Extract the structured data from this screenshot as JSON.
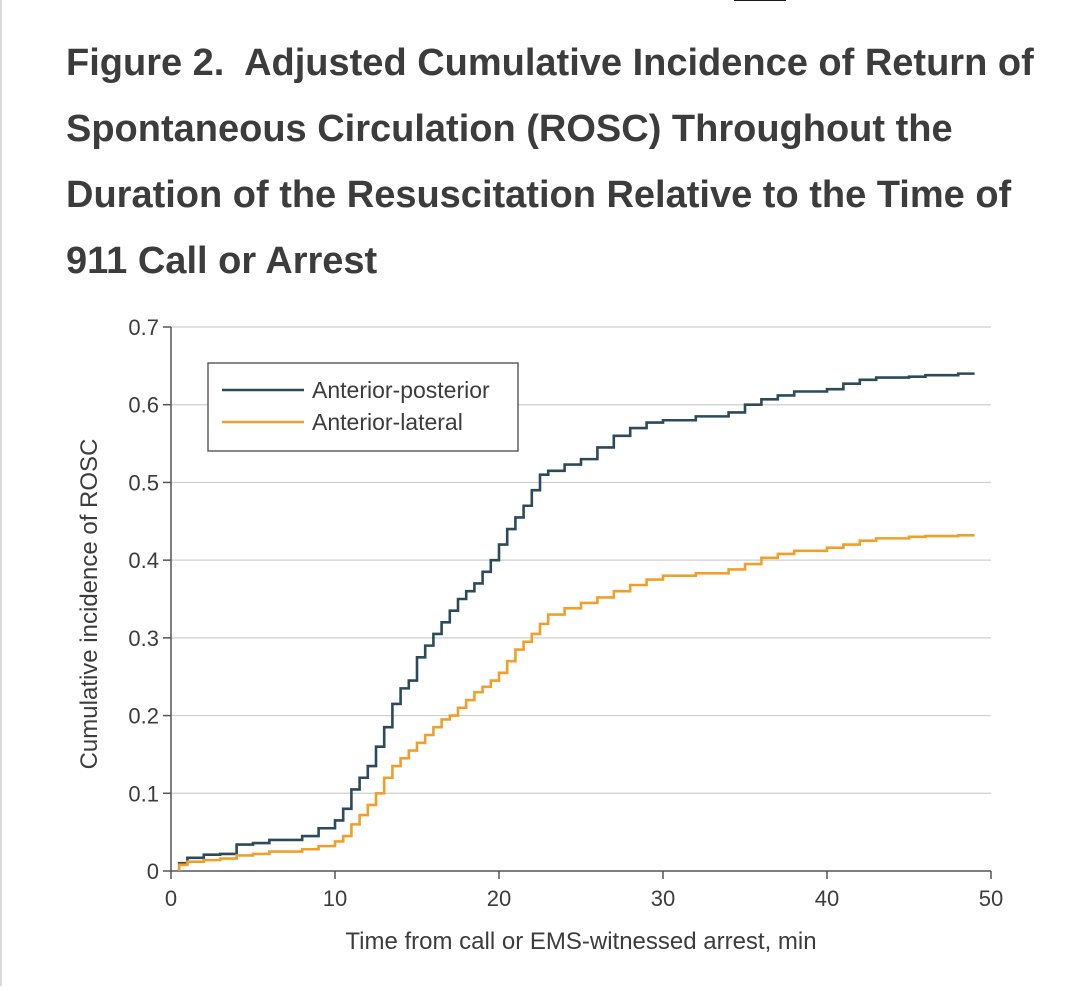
{
  "figure": {
    "title_prefix": "Figure 2.",
    "title_text": "Adjusted Cumulative Incidence of Return of Spontaneous Circulation (ROSC) Throughout the Duration of the Resuscitation Relative to the Time of 911 Call or Arrest"
  },
  "chart_data": {
    "type": "line",
    "xlabel": "Time from call or EMS-witnessed arrest, min",
    "ylabel": "Cumulative incidence of ROSC",
    "xlim": [
      0,
      50
    ],
    "ylim": [
      0,
      0.7
    ],
    "x_ticks": [
      "0",
      "10",
      "20",
      "30",
      "40",
      "50"
    ],
    "y_ticks": [
      "0",
      "0.1",
      "0.2",
      "0.3",
      "0.4",
      "0.5",
      "0.6",
      "0.7"
    ],
    "grid": "horizontal",
    "legend_position": "top-left",
    "series": [
      {
        "name": "Anterior-posterior",
        "color": "#2b4a5a",
        "x": [
          0.5,
          1,
          2,
          3,
          4,
          5,
          6,
          8,
          9,
          10,
          10.5,
          11,
          11.5,
          12,
          12.5,
          13,
          13.5,
          14,
          14.5,
          15,
          15.5,
          16,
          16.5,
          17,
          17.5,
          18,
          18.5,
          19,
          19.5,
          20,
          20.5,
          21,
          21.5,
          22,
          22.5,
          23,
          24,
          25,
          26,
          27,
          28,
          29,
          30,
          32,
          34,
          35,
          36,
          37,
          38,
          40,
          41,
          42,
          43,
          45,
          46,
          48,
          49
        ],
        "y": [
          0.01,
          0.017,
          0.021,
          0.022,
          0.034,
          0.036,
          0.04,
          0.045,
          0.055,
          0.065,
          0.08,
          0.105,
          0.12,
          0.135,
          0.16,
          0.185,
          0.215,
          0.235,
          0.245,
          0.275,
          0.29,
          0.305,
          0.32,
          0.335,
          0.35,
          0.36,
          0.37,
          0.385,
          0.4,
          0.42,
          0.44,
          0.455,
          0.47,
          0.49,
          0.51,
          0.515,
          0.523,
          0.53,
          0.545,
          0.56,
          0.57,
          0.577,
          0.58,
          0.585,
          0.59,
          0.6,
          0.607,
          0.612,
          0.617,
          0.62,
          0.627,
          0.632,
          0.635,
          0.636,
          0.638,
          0.64,
          0.64
        ]
      },
      {
        "name": "Anterior-lateral",
        "color": "#f0a02a",
        "x": [
          0.5,
          1,
          2,
          3,
          4,
          5,
          6,
          8,
          9,
          10,
          10.5,
          11,
          11.5,
          12,
          12.5,
          13,
          13.5,
          14,
          14.5,
          15,
          15.5,
          16,
          16.5,
          17,
          17.5,
          18,
          18.5,
          19,
          19.5,
          20,
          20.5,
          21,
          21.5,
          22,
          22.5,
          23,
          24,
          25,
          26,
          27,
          28,
          29,
          30,
          32,
          34,
          35,
          36,
          37,
          38,
          40,
          41,
          42,
          43,
          45,
          46,
          48,
          49
        ],
        "y": [
          0.008,
          0.012,
          0.014,
          0.016,
          0.02,
          0.022,
          0.025,
          0.028,
          0.032,
          0.038,
          0.045,
          0.06,
          0.072,
          0.085,
          0.1,
          0.12,
          0.135,
          0.145,
          0.155,
          0.165,
          0.175,
          0.185,
          0.195,
          0.2,
          0.21,
          0.22,
          0.23,
          0.237,
          0.245,
          0.255,
          0.27,
          0.285,
          0.295,
          0.305,
          0.318,
          0.33,
          0.338,
          0.345,
          0.352,
          0.36,
          0.368,
          0.375,
          0.38,
          0.383,
          0.388,
          0.395,
          0.403,
          0.408,
          0.412,
          0.416,
          0.42,
          0.425,
          0.428,
          0.43,
          0.431,
          0.432,
          0.432
        ]
      }
    ]
  }
}
